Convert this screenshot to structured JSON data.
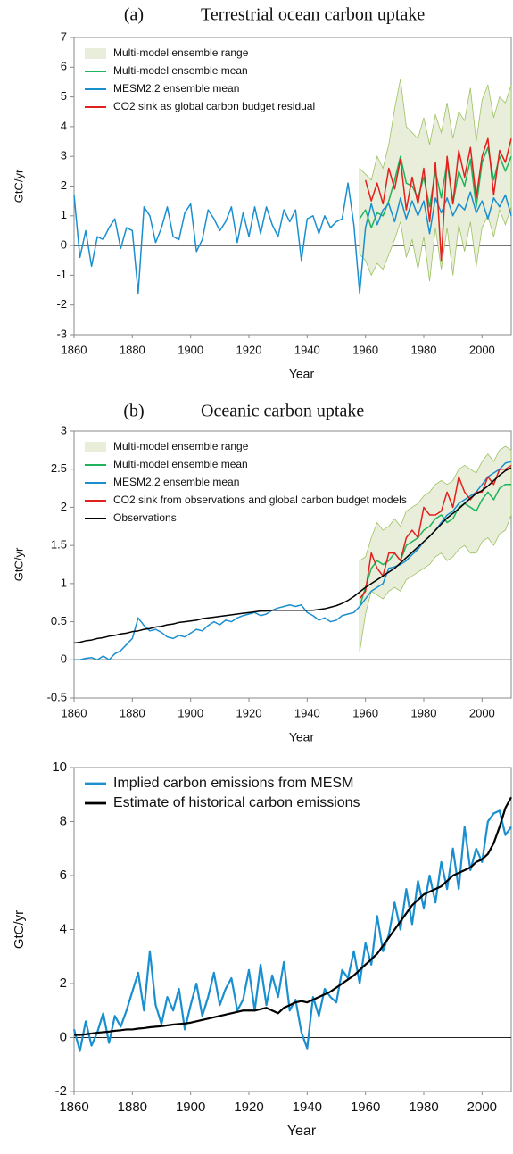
{
  "chart_data": [
    {
      "type": "line",
      "panel_label": "(a)",
      "title": "Terrestrial ocean carbon uptake",
      "x_label": "Year",
      "y_label": "GtC/yr",
      "xlim": [
        1860,
        2010
      ],
      "xticks": [
        1860,
        1880,
        1900,
        1920,
        1940,
        1960,
        1980,
        2000
      ],
      "ylim": [
        -3,
        7
      ],
      "yticks": [
        -3,
        -2,
        -1,
        0,
        1,
        2,
        3,
        4,
        5,
        6,
        7
      ],
      "x": [
        1860,
        1862,
        1864,
        1866,
        1868,
        1870,
        1872,
        1874,
        1876,
        1878,
        1880,
        1882,
        1884,
        1886,
        1888,
        1890,
        1892,
        1894,
        1896,
        1898,
        1900,
        1902,
        1904,
        1906,
        1908,
        1910,
        1912,
        1914,
        1916,
        1918,
        1920,
        1922,
        1924,
        1926,
        1928,
        1930,
        1932,
        1934,
        1936,
        1938,
        1940,
        1942,
        1944,
        1946,
        1948,
        1950,
        1952,
        1954,
        1956,
        1958,
        1960,
        1962,
        1964,
        1966,
        1968,
        1970,
        1972,
        1974,
        1976,
        1978,
        1980,
        1982,
        1984,
        1986,
        1988,
        1990,
        1992,
        1994,
        1996,
        1998,
        2000,
        2002,
        2004,
        2006,
        2008,
        2010
      ],
      "series": [
        {
          "name": "Multi-model ensemble range",
          "color": "#e9eedb",
          "edge_color": "#9cc25f",
          "x": [
            1958,
            1960,
            1962,
            1964,
            1966,
            1968,
            1970,
            1972,
            1974,
            1976,
            1978,
            1980,
            1982,
            1984,
            1986,
            1988,
            1990,
            1992,
            1994,
            1996,
            1998,
            2000,
            2002,
            2004,
            2006,
            2008,
            2010
          ],
          "lower": [
            -0.3,
            -0.5,
            -1.0,
            -0.6,
            -0.8,
            -0.3,
            0.2,
            0.8,
            -0.4,
            0.2,
            -0.8,
            0.3,
            -1.2,
            0.6,
            -0.8,
            0.6,
            -1.0,
            0.7,
            -0.2,
            0.8,
            -0.7,
            0.6,
            1.0,
            0.3,
            1.2,
            0.7,
            1.3
          ],
          "upper": [
            2.6,
            2.4,
            2.2,
            3.0,
            2.6,
            3.4,
            4.6,
            5.6,
            4.0,
            3.8,
            3.6,
            4.3,
            3.4,
            4.4,
            3.8,
            4.8,
            3.6,
            4.5,
            4.2,
            5.3,
            3.5,
            4.9,
            5.4,
            4.3,
            5.0,
            4.8,
            5.4
          ]
        },
        {
          "name": "Multi-model ensemble mean",
          "color": "#1fb35c",
          "x": [
            1958,
            1960,
            1962,
            1964,
            1966,
            1968,
            1970,
            1972,
            1974,
            1976,
            1978,
            1980,
            1982,
            1984,
            1986,
            1988,
            1990,
            1992,
            1994,
            1996,
            1998,
            2000,
            2002,
            2004,
            2006,
            2008,
            2010
          ],
          "values": [
            0.9,
            1.2,
            0.6,
            1.1,
            1.0,
            1.5,
            2.2,
            3.0,
            2.1,
            2.0,
            1.6,
            2.3,
            1.3,
            2.5,
            1.6,
            2.8,
            1.4,
            2.5,
            2.0,
            2.9,
            1.3,
            2.8,
            3.3,
            2.2,
            3.0,
            2.5,
            3.0
          ]
        },
        {
          "name": "MESM2.2 ensemble mean",
          "color": "#1a8fd0",
          "values": [
            1.7,
            -0.4,
            0.5,
            -0.7,
            0.3,
            0.2,
            0.6,
            0.9,
            -0.1,
            0.6,
            0.5,
            -1.6,
            1.3,
            1.0,
            0.1,
            0.6,
            1.3,
            0.3,
            0.2,
            1.1,
            1.4,
            -0.2,
            0.2,
            1.2,
            0.9,
            0.5,
            0.8,
            1.3,
            0.1,
            1.1,
            0.3,
            1.3,
            0.4,
            1.3,
            0.7,
            0.3,
            1.2,
            0.8,
            1.2,
            -0.5,
            0.9,
            1.0,
            0.4,
            1.0,
            0.6,
            0.8,
            0.9,
            2.1,
            0.7,
            -1.6,
            0.6,
            1.4,
            0.7,
            1.2,
            1.4,
            0.8,
            1.6,
            0.9,
            1.5,
            1.0,
            1.5,
            0.4,
            1.6,
            1.1,
            1.6,
            1.0,
            1.4,
            1.2,
            1.8,
            1.1,
            1.5,
            0.9,
            1.6,
            1.3,
            1.7,
            1.0
          ]
        },
        {
          "name": "CO2 sink as global carbon budget residual",
          "color": "#e2201c",
          "x": [
            1958,
            1960,
            1962,
            1964,
            1966,
            1968,
            1970,
            1972,
            1974,
            1976,
            1978,
            1980,
            1982,
            1984,
            1986,
            1988,
            1990,
            1992,
            1994,
            1996,
            1998,
            2000,
            2002,
            2004,
            2006,
            2008,
            2010
          ],
          "values": [
            null,
            2.2,
            1.5,
            2.1,
            1.4,
            2.6,
            1.9,
            2.9,
            1.2,
            2.3,
            1.4,
            2.6,
            0.8,
            2.8,
            -0.5,
            3.0,
            1.4,
            3.2,
            2.3,
            3.3,
            1.6,
            3.0,
            3.6,
            1.7,
            3.2,
            2.8,
            3.6
          ]
        }
      ]
    },
    {
      "type": "line",
      "panel_label": "(b)",
      "title": "Oceanic carbon uptake",
      "x_label": "Year",
      "y_label": "GtC/yr",
      "xlim": [
        1860,
        2010
      ],
      "xticks": [
        1860,
        1880,
        1900,
        1920,
        1940,
        1960,
        1980,
        2000
      ],
      "ylim": [
        -0.5,
        3
      ],
      "yticks": [
        -0.5,
        0,
        0.5,
        1,
        1.5,
        2,
        2.5,
        3
      ],
      "x": [
        1860,
        1862,
        1864,
        1866,
        1868,
        1870,
        1872,
        1874,
        1876,
        1878,
        1880,
        1882,
        1884,
        1886,
        1888,
        1890,
        1892,
        1894,
        1896,
        1898,
        1900,
        1902,
        1904,
        1906,
        1908,
        1910,
        1912,
        1914,
        1916,
        1918,
        1920,
        1922,
        1924,
        1926,
        1928,
        1930,
        1932,
        1934,
        1936,
        1938,
        1940,
        1942,
        1944,
        1946,
        1948,
        1950,
        1952,
        1954,
        1956,
        1958,
        1960,
        1962,
        1964,
        1966,
        1968,
        1970,
        1972,
        1974,
        1976,
        1978,
        1980,
        1982,
        1984,
        1986,
        1988,
        1990,
        1992,
        1994,
        1996,
        1998,
        2000,
        2002,
        2004,
        2006,
        2008,
        2010
      ],
      "series": [
        {
          "name": "Multi-model ensemble range",
          "color": "#e9eedb",
          "edge_color": "#9cc25f",
          "x": [
            1958,
            1960,
            1962,
            1964,
            1966,
            1968,
            1970,
            1972,
            1974,
            1976,
            1978,
            1980,
            1982,
            1984,
            1986,
            1988,
            1990,
            1992,
            1994,
            1996,
            1998,
            2000,
            2002,
            2004,
            2006,
            2008,
            2010
          ],
          "lower": [
            0.1,
            0.6,
            0.9,
            0.85,
            0.8,
            0.9,
            0.95,
            0.9,
            1.05,
            1.1,
            1.15,
            1.2,
            1.25,
            1.35,
            1.4,
            1.3,
            1.35,
            1.45,
            1.5,
            1.4,
            1.4,
            1.55,
            1.6,
            1.5,
            1.65,
            1.7,
            1.9
          ],
          "upper": [
            1.3,
            1.35,
            1.6,
            1.8,
            1.7,
            1.75,
            1.85,
            1.75,
            1.95,
            2.0,
            2.05,
            2.15,
            2.2,
            2.3,
            2.35,
            2.3,
            2.35,
            2.5,
            2.55,
            2.5,
            2.45,
            2.6,
            2.7,
            2.6,
            2.75,
            2.8,
            2.75
          ]
        },
        {
          "name": "Multi-model ensemble mean",
          "color": "#1fb35c",
          "x": [
            1958,
            1960,
            1962,
            1964,
            1966,
            1968,
            1970,
            1972,
            1974,
            1976,
            1978,
            1980,
            1982,
            1984,
            1986,
            1988,
            1990,
            1992,
            1994,
            1996,
            1998,
            2000,
            2002,
            2004,
            2006,
            2008,
            2010
          ],
          "values": [
            0.7,
            0.95,
            1.2,
            1.3,
            1.25,
            1.3,
            1.4,
            1.3,
            1.5,
            1.55,
            1.6,
            1.7,
            1.75,
            1.85,
            1.9,
            1.8,
            1.85,
            2.0,
            2.05,
            2.0,
            1.95,
            2.1,
            2.2,
            2.1,
            2.25,
            2.3,
            2.3
          ]
        },
        {
          "name": "MESM2.2 ensemble mean",
          "color": "#1a8fd0",
          "values": [
            0.0,
            0.0,
            0.02,
            0.03,
            0.0,
            0.05,
            0.0,
            0.08,
            0.12,
            0.2,
            0.28,
            0.55,
            0.45,
            0.38,
            0.4,
            0.36,
            0.3,
            0.28,
            0.32,
            0.3,
            0.35,
            0.4,
            0.38,
            0.45,
            0.5,
            0.46,
            0.52,
            0.5,
            0.55,
            0.58,
            0.6,
            0.62,
            0.58,
            0.6,
            0.65,
            0.68,
            0.7,
            0.72,
            0.7,
            0.72,
            0.62,
            0.58,
            0.52,
            0.55,
            0.5,
            0.52,
            0.58,
            0.6,
            0.62,
            0.7,
            0.8,
            0.9,
            0.95,
            1.0,
            1.2,
            1.22,
            1.25,
            1.3,
            1.38,
            1.45,
            1.55,
            1.62,
            1.7,
            1.8,
            1.9,
            1.95,
            2.05,
            2.1,
            2.15,
            2.2,
            2.3,
            2.4,
            2.45,
            2.5,
            2.58,
            2.6
          ]
        },
        {
          "name": "CO2 sink from observations and global carbon budget models",
          "color": "#e2201c",
          "x": [
            1958,
            1960,
            1962,
            1964,
            1966,
            1968,
            1970,
            1972,
            1974,
            1976,
            1978,
            1980,
            1982,
            1984,
            1986,
            1988,
            1990,
            1992,
            1994,
            1996,
            1998,
            2000,
            2002,
            2004,
            2006,
            2008,
            2010
          ],
          "values": [
            0.8,
            0.9,
            1.4,
            1.2,
            1.1,
            1.4,
            1.4,
            1.3,
            1.6,
            1.7,
            1.6,
            2.0,
            1.9,
            1.9,
            1.95,
            2.2,
            2.0,
            2.4,
            2.2,
            2.1,
            2.2,
            2.2,
            2.4,
            2.3,
            2.5,
            2.5,
            2.55
          ]
        },
        {
          "name": "Observations",
          "color": "#000000",
          "values": [
            0.22,
            0.23,
            0.25,
            0.26,
            0.28,
            0.29,
            0.31,
            0.32,
            0.34,
            0.35,
            0.37,
            0.38,
            0.4,
            0.41,
            0.43,
            0.44,
            0.46,
            0.47,
            0.49,
            0.5,
            0.51,
            0.52,
            0.54,
            0.55,
            0.56,
            0.57,
            0.58,
            0.59,
            0.6,
            0.61,
            0.62,
            0.63,
            0.64,
            0.64,
            0.65,
            0.65,
            0.65,
            0.65,
            0.65,
            0.65,
            0.65,
            0.65,
            0.66,
            0.67,
            0.69,
            0.71,
            0.74,
            0.78,
            0.83,
            0.89,
            0.95,
            1.0,
            1.05,
            1.1,
            1.15,
            1.2,
            1.27,
            1.34,
            1.41,
            1.48,
            1.55,
            1.62,
            1.7,
            1.78,
            1.86,
            1.92,
            1.98,
            2.05,
            2.12,
            2.18,
            2.22,
            2.28,
            2.35,
            2.42,
            2.48,
            2.52
          ]
        }
      ]
    },
    {
      "type": "line",
      "x_label": "Year",
      "y_label": "GtC/yr",
      "xlim": [
        1860,
        2010
      ],
      "xticks": [
        1860,
        1880,
        1900,
        1920,
        1940,
        1960,
        1980,
        2000
      ],
      "ylim": [
        -2,
        10
      ],
      "yticks": [
        -2,
        0,
        2,
        4,
        6,
        8,
        10
      ],
      "x": [
        1860,
        1862,
        1864,
        1866,
        1868,
        1870,
        1872,
        1874,
        1876,
        1878,
        1880,
        1882,
        1884,
        1886,
        1888,
        1890,
        1892,
        1894,
        1896,
        1898,
        1900,
        1902,
        1904,
        1906,
        1908,
        1910,
        1912,
        1914,
        1916,
        1918,
        1920,
        1922,
        1924,
        1926,
        1928,
        1930,
        1932,
        1934,
        1936,
        1938,
        1940,
        1942,
        1944,
        1946,
        1948,
        1950,
        1952,
        1954,
        1956,
        1958,
        1960,
        1962,
        1964,
        1966,
        1968,
        1970,
        1972,
        1974,
        1976,
        1978,
        1980,
        1982,
        1984,
        1986,
        1988,
        1990,
        1992,
        1994,
        1996,
        1998,
        2000,
        2002,
        2004,
        2006,
        2008,
        2010
      ],
      "series": [
        {
          "name": "Implied carbon emissions from MESM",
          "color": "#1a8fd0",
          "values": [
            0.3,
            -0.5,
            0.6,
            -0.3,
            0.2,
            0.9,
            -0.2,
            0.8,
            0.4,
            1.0,
            1.7,
            2.4,
            1.0,
            3.2,
            1.2,
            0.5,
            1.5,
            1.0,
            1.8,
            0.3,
            1.2,
            2.0,
            0.8,
            1.5,
            2.4,
            1.2,
            1.8,
            2.2,
            1.0,
            1.4,
            2.5,
            1.0,
            2.7,
            1.2,
            2.3,
            1.5,
            2.8,
            1.0,
            1.4,
            0.2,
            -0.4,
            1.5,
            0.8,
            1.8,
            1.5,
            1.3,
            2.5,
            2.2,
            3.2,
            2.0,
            3.5,
            2.7,
            4.5,
            3.2,
            3.8,
            5.0,
            4.0,
            5.5,
            4.2,
            5.8,
            4.8,
            6.0,
            5.0,
            6.5,
            5.5,
            7.0,
            5.5,
            7.8,
            6.2,
            7.0,
            6.5,
            8.0,
            8.3,
            8.4,
            7.5,
            7.8
          ]
        },
        {
          "name": "Estimate of historical carbon emissions",
          "color": "#000000",
          "values": [
            0.1,
            0.1,
            0.12,
            0.15,
            0.18,
            0.2,
            0.22,
            0.25,
            0.27,
            0.3,
            0.3,
            0.33,
            0.35,
            0.38,
            0.4,
            0.42,
            0.45,
            0.48,
            0.5,
            0.52,
            0.55,
            0.6,
            0.65,
            0.7,
            0.75,
            0.8,
            0.85,
            0.9,
            0.95,
            1.0,
            1.0,
            1.0,
            1.05,
            1.1,
            1.0,
            0.9,
            1.1,
            1.2,
            1.3,
            1.35,
            1.3,
            1.4,
            1.5,
            1.6,
            1.7,
            1.85,
            2.0,
            2.15,
            2.3,
            2.5,
            2.7,
            2.9,
            3.1,
            3.4,
            3.7,
            4.0,
            4.3,
            4.6,
            4.9,
            5.1,
            5.3,
            5.4,
            5.5,
            5.6,
            5.8,
            6.0,
            6.1,
            6.2,
            6.3,
            6.5,
            6.6,
            6.8,
            7.2,
            7.8,
            8.5,
            8.9
          ]
        }
      ]
    }
  ]
}
